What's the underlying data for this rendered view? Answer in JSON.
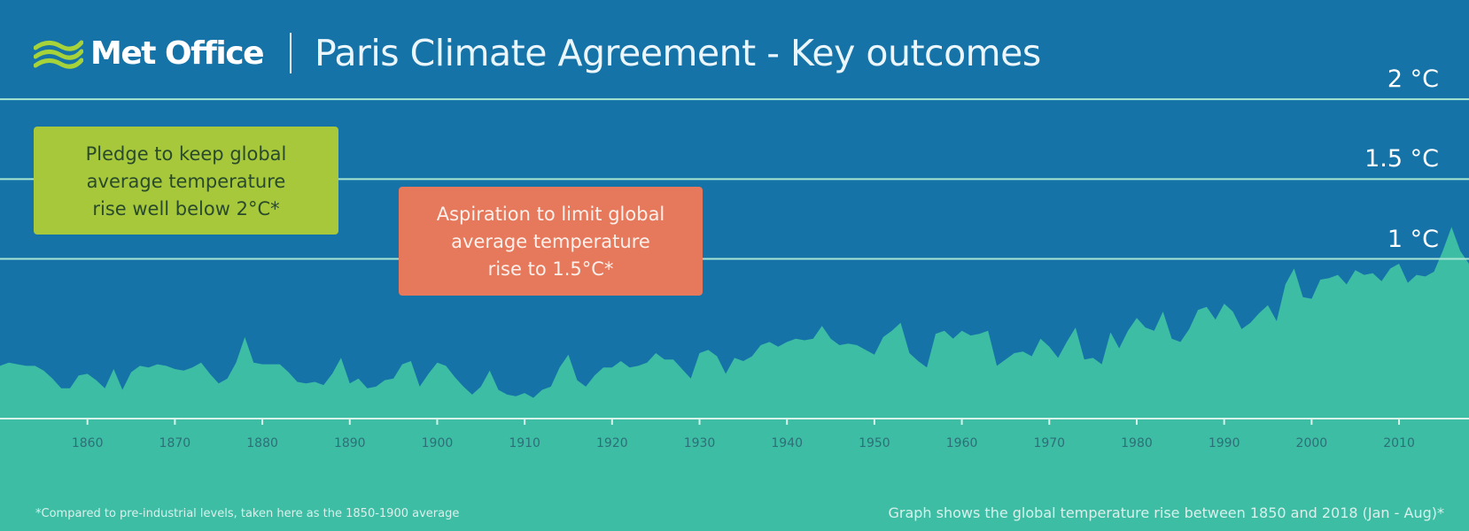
{
  "header": {
    "brand": "Met Office",
    "title": "Paris Climate Agreement - Key outcomes"
  },
  "logo": {
    "icon": "met-office-waves-icon"
  },
  "callouts": {
    "pledge": {
      "lines": [
        "Pledge to keep global",
        "average temperature",
        "rise well below 2°C*"
      ]
    },
    "aspiration": {
      "lines": [
        "Aspiration to limit global",
        "average temperature",
        "rise to 1.5°C*"
      ]
    }
  },
  "footnote": "*Compared to pre-industrial levels, taken here as the 1850-1900 average",
  "caption": "Graph shows the global temperature rise between 1850 and 2018 (Jan - Aug)*",
  "colors": {
    "background": "#1673a8",
    "area": "#3dbea4",
    "reference_line": "#a8e6d3",
    "pledge_box": "#a6c83a",
    "aspiration_box": "#e6785c"
  },
  "chart_data": {
    "type": "area",
    "title": "Paris Climate Agreement - Key outcomes",
    "xlabel": "",
    "ylabel": "",
    "xlim": [
      1850,
      2018
    ],
    "ylim": [
      -0.15,
      2.4
    ],
    "x_ticks": [
      1860,
      1870,
      1880,
      1890,
      1900,
      1910,
      1920,
      1930,
      1940,
      1950,
      1960,
      1970,
      1980,
      1990,
      2000,
      2010
    ],
    "reference_lines": [
      {
        "value": 2.0,
        "label": "2 °C"
      },
      {
        "value": 1.5,
        "label": "1.5 °C"
      },
      {
        "value": 1.0,
        "label": "1 °C"
      }
    ],
    "x": [
      1850,
      1851,
      1852,
      1853,
      1854,
      1855,
      1856,
      1857,
      1858,
      1859,
      1860,
      1861,
      1862,
      1863,
      1864,
      1865,
      1866,
      1867,
      1868,
      1869,
      1870,
      1871,
      1872,
      1873,
      1874,
      1875,
      1876,
      1877,
      1878,
      1879,
      1880,
      1881,
      1882,
      1883,
      1884,
      1885,
      1886,
      1887,
      1888,
      1889,
      1890,
      1891,
      1892,
      1893,
      1894,
      1895,
      1896,
      1897,
      1898,
      1899,
      1900,
      1901,
      1902,
      1903,
      1904,
      1905,
      1906,
      1907,
      1908,
      1909,
      1910,
      1911,
      1912,
      1913,
      1914,
      1915,
      1916,
      1917,
      1918,
      1919,
      1920,
      1921,
      1922,
      1923,
      1924,
      1925,
      1926,
      1927,
      1928,
      1929,
      1930,
      1931,
      1932,
      1933,
      1934,
      1935,
      1936,
      1937,
      1938,
      1939,
      1940,
      1941,
      1942,
      1943,
      1944,
      1945,
      1946,
      1947,
      1948,
      1949,
      1950,
      1951,
      1952,
      1953,
      1954,
      1955,
      1956,
      1957,
      1958,
      1959,
      1960,
      1961,
      1962,
      1963,
      1964,
      1965,
      1966,
      1967,
      1968,
      1969,
      1970,
      1971,
      1972,
      1973,
      1974,
      1975,
      1976,
      1977,
      1978,
      1979,
      1980,
      1981,
      1982,
      1983,
      1984,
      1985,
      1986,
      1987,
      1988,
      1989,
      1990,
      1991,
      1992,
      1993,
      1994,
      1995,
      1996,
      1997,
      1998,
      1999,
      2000,
      2001,
      2002,
      2003,
      2004,
      2005,
      2006,
      2007,
      2008,
      2009,
      2010,
      2011,
      2012,
      2013,
      2014,
      2015,
      2016,
      2017,
      2018
    ],
    "values": [
      0.33,
      0.35,
      0.34,
      0.33,
      0.33,
      0.3,
      0.25,
      0.19,
      0.19,
      0.27,
      0.28,
      0.24,
      0.19,
      0.31,
      0.18,
      0.29,
      0.33,
      0.32,
      0.34,
      0.33,
      0.31,
      0.3,
      0.32,
      0.35,
      0.28,
      0.22,
      0.25,
      0.35,
      0.51,
      0.35,
      0.34,
      0.34,
      0.34,
      0.29,
      0.23,
      0.22,
      0.23,
      0.21,
      0.28,
      0.38,
      0.22,
      0.25,
      0.19,
      0.2,
      0.24,
      0.25,
      0.34,
      0.36,
      0.2,
      0.28,
      0.35,
      0.33,
      0.26,
      0.2,
      0.15,
      0.2,
      0.3,
      0.18,
      0.15,
      0.14,
      0.16,
      0.13,
      0.18,
      0.2,
      0.32,
      0.4,
      0.24,
      0.2,
      0.27,
      0.32,
      0.32,
      0.36,
      0.32,
      0.33,
      0.35,
      0.41,
      0.37,
      0.37,
      0.31,
      0.25,
      0.41,
      0.43,
      0.39,
      0.28,
      0.38,
      0.36,
      0.39,
      0.46,
      0.48,
      0.45,
      0.48,
      0.5,
      0.49,
      0.5,
      0.58,
      0.5,
      0.46,
      0.47,
      0.46,
      0.43,
      0.4,
      0.51,
      0.55,
      0.6,
      0.41,
      0.36,
      0.32,
      0.53,
      0.55,
      0.5,
      0.55,
      0.52,
      0.53,
      0.55,
      0.33,
      0.37,
      0.41,
      0.42,
      0.39,
      0.5,
      0.45,
      0.38,
      0.48,
      0.57,
      0.37,
      0.38,
      0.34,
      0.54,
      0.44,
      0.55,
      0.63,
      0.57,
      0.55,
      0.67,
      0.5,
      0.48,
      0.56,
      0.68,
      0.7,
      0.62,
      0.72,
      0.67,
      0.56,
      0.6,
      0.66,
      0.71,
      0.61,
      0.84,
      0.94,
      0.76,
      0.75,
      0.87,
      0.88,
      0.9,
      0.84,
      0.93,
      0.9,
      0.91,
      0.86,
      0.94,
      0.97,
      0.85,
      0.9,
      0.89,
      0.92,
      1.05,
      1.2,
      1.05,
      0.97
    ]
  }
}
